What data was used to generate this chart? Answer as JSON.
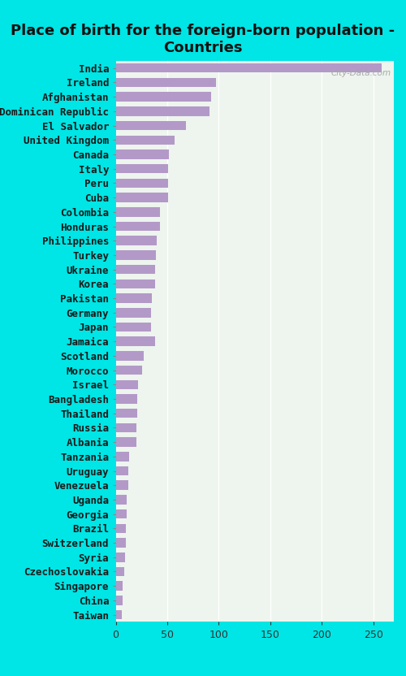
{
  "title": "Place of birth for the foreign-born population -\nCountries",
  "categories": [
    "India",
    "Ireland",
    "Afghanistan",
    "Dominican Republic",
    "El Salvador",
    "United Kingdom",
    "Canada",
    "Italy",
    "Peru",
    "Cuba",
    "Colombia",
    "Honduras",
    "Philippines",
    "Turkey",
    "Ukraine",
    "Korea",
    "Pakistan",
    "Germany",
    "Japan",
    "Jamaica",
    "Scotland",
    "Morocco",
    "Israel",
    "Bangladesh",
    "Thailand",
    "Russia",
    "Albania",
    "Tanzania",
    "Uruguay",
    "Venezuela",
    "Uganda",
    "Georgia",
    "Brazil",
    "Switzerland",
    "Syria",
    "Czechoslovakia",
    "Singapore",
    "China",
    "Taiwan"
  ],
  "values": [
    258,
    97,
    93,
    91,
    68,
    57,
    52,
    51,
    51,
    51,
    43,
    43,
    40,
    39,
    38,
    38,
    35,
    34,
    34,
    38,
    27,
    26,
    22,
    21,
    21,
    20,
    20,
    13,
    12,
    12,
    11,
    11,
    10,
    10,
    9,
    8,
    7,
    7,
    6
  ],
  "bar_color": "#b399c8",
  "background_color": "#00e5e5",
  "plot_bg_color": "#edf5ee",
  "xlim": [
    0,
    270
  ],
  "xticks": [
    0,
    50,
    100,
    150,
    200,
    250
  ],
  "watermark": "City-Data.com",
  "title_fontsize": 13,
  "tick_fontsize": 9,
  "label_fontsize": 9
}
